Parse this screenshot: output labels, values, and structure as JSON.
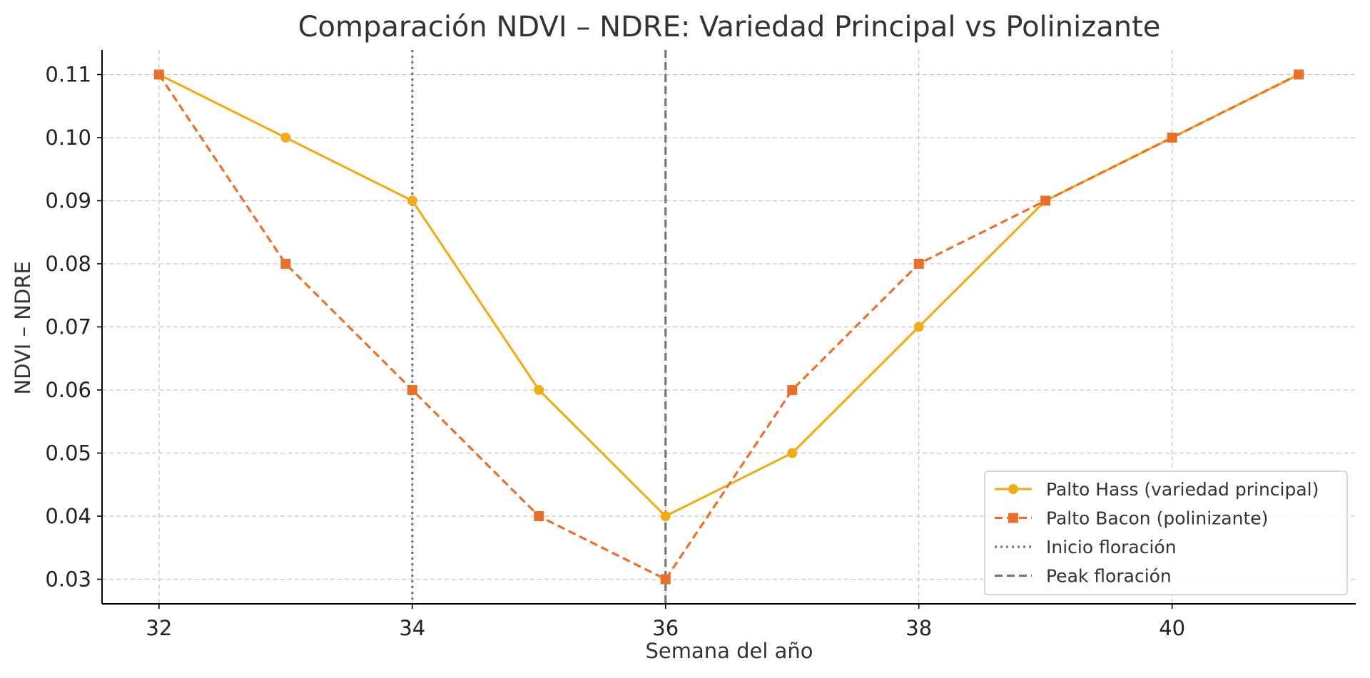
{
  "chart_data": {
    "type": "line",
    "title": "Comparación NDVI – NDRE: Variedad Principal vs Polinizante",
    "xlabel": "Semana del año",
    "ylabel": "NDVI – NDRE",
    "xlim": [
      31.55,
      41.45
    ],
    "ylim": [
      0.0261,
      0.1139
    ],
    "xticks": [
      32,
      34,
      36,
      38,
      40
    ],
    "xtick_labels": [
      "32",
      "34",
      "36",
      "38",
      "40"
    ],
    "yticks": [
      0.03,
      0.04,
      0.05,
      0.06,
      0.07,
      0.08,
      0.09,
      0.1,
      0.11
    ],
    "ytick_labels": [
      "0.03",
      "0.04",
      "0.05",
      "0.06",
      "0.07",
      "0.08",
      "0.09",
      "0.10",
      "0.11"
    ],
    "grid": true,
    "legend_position": "bottom-right",
    "x": [
      32,
      33,
      34,
      35,
      36,
      37,
      38,
      39,
      40,
      41
    ],
    "series": [
      {
        "name": "Palto Hass (variedad principal)",
        "values": [
          0.11,
          0.1,
          0.09,
          0.06,
          0.04,
          0.05,
          0.07,
          0.09,
          0.1,
          0.11
        ],
        "color": "#F0AD1A",
        "line_style": "solid",
        "marker": "circle"
      },
      {
        "name": "Palto Bacon (polinizante)",
        "values": [
          0.11,
          0.08,
          0.06,
          0.04,
          0.03,
          0.06,
          0.08,
          0.09,
          0.1,
          0.11
        ],
        "color": "#E8702A",
        "line_style": "dashed",
        "marker": "square"
      }
    ],
    "reference_lines": [
      {
        "name": "Inicio floración",
        "x": 34,
        "color": "#777777",
        "line_style": "dotted"
      },
      {
        "name": "Peak floración",
        "x": 36,
        "color": "#777777",
        "line_style": "dashed"
      }
    ]
  }
}
